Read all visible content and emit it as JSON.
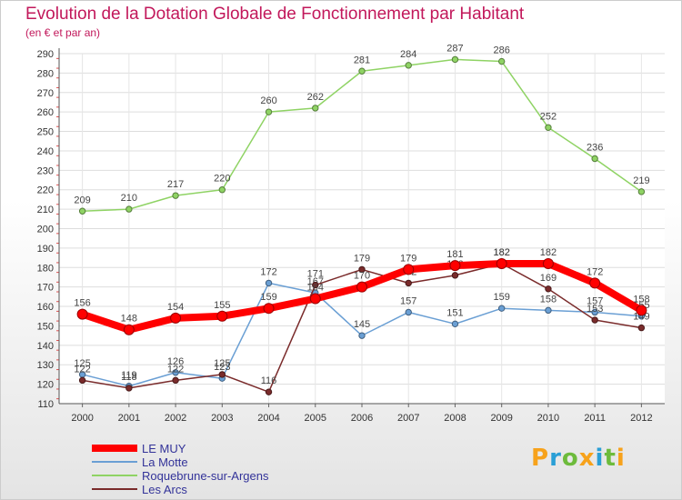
{
  "title": "Evolution de la Dotation Globale de Fonctionnement par Habitant",
  "subtitle": "(en € et par an)",
  "brand": {
    "letters": [
      "P",
      "r",
      "o",
      "x",
      "i",
      "t",
      "i"
    ],
    "colors": [
      "#f7a21b",
      "#2a9fd6",
      "#6dbb3c",
      "#f7a21b",
      "#2a9fd6",
      "#6dbb3c",
      "#f7a21b"
    ]
  },
  "chart_data": {
    "type": "line",
    "x": [
      "2000",
      "2001",
      "2002",
      "2003",
      "2004",
      "2005",
      "2006",
      "2007",
      "2008",
      "2009",
      "2010",
      "2011",
      "2012"
    ],
    "ylim": [
      110,
      290
    ],
    "yticks": [
      110,
      120,
      130,
      140,
      150,
      160,
      170,
      180,
      190,
      200,
      210,
      220,
      230,
      240,
      250,
      260,
      270,
      280,
      290
    ],
    "grid": true,
    "legend_position": "bottom-left",
    "series": [
      {
        "name": "LE MUY",
        "color": "#ff0000",
        "values": [
          156,
          148,
          154,
          155,
          159,
          164,
          170,
          179,
          181,
          182,
          182,
          172,
          158
        ]
      },
      {
        "name": "La Motte",
        "color": "#6a9fd4",
        "values": [
          125,
          119,
          126,
          123,
          172,
          167,
          145,
          157,
          151,
          159,
          158,
          157,
          155
        ]
      },
      {
        "name": "Roquebrune-sur-Argens",
        "color": "#8fd364",
        "values": [
          209,
          210,
          217,
          220,
          260,
          262,
          281,
          284,
          287,
          286,
          252,
          236,
          219
        ]
      },
      {
        "name": "Les Arcs",
        "color": "#7a2b2b",
        "values": [
          122,
          118,
          122,
          125,
          116,
          171,
          179,
          172,
          176,
          182,
          169,
          153,
          149
        ]
      }
    ]
  }
}
